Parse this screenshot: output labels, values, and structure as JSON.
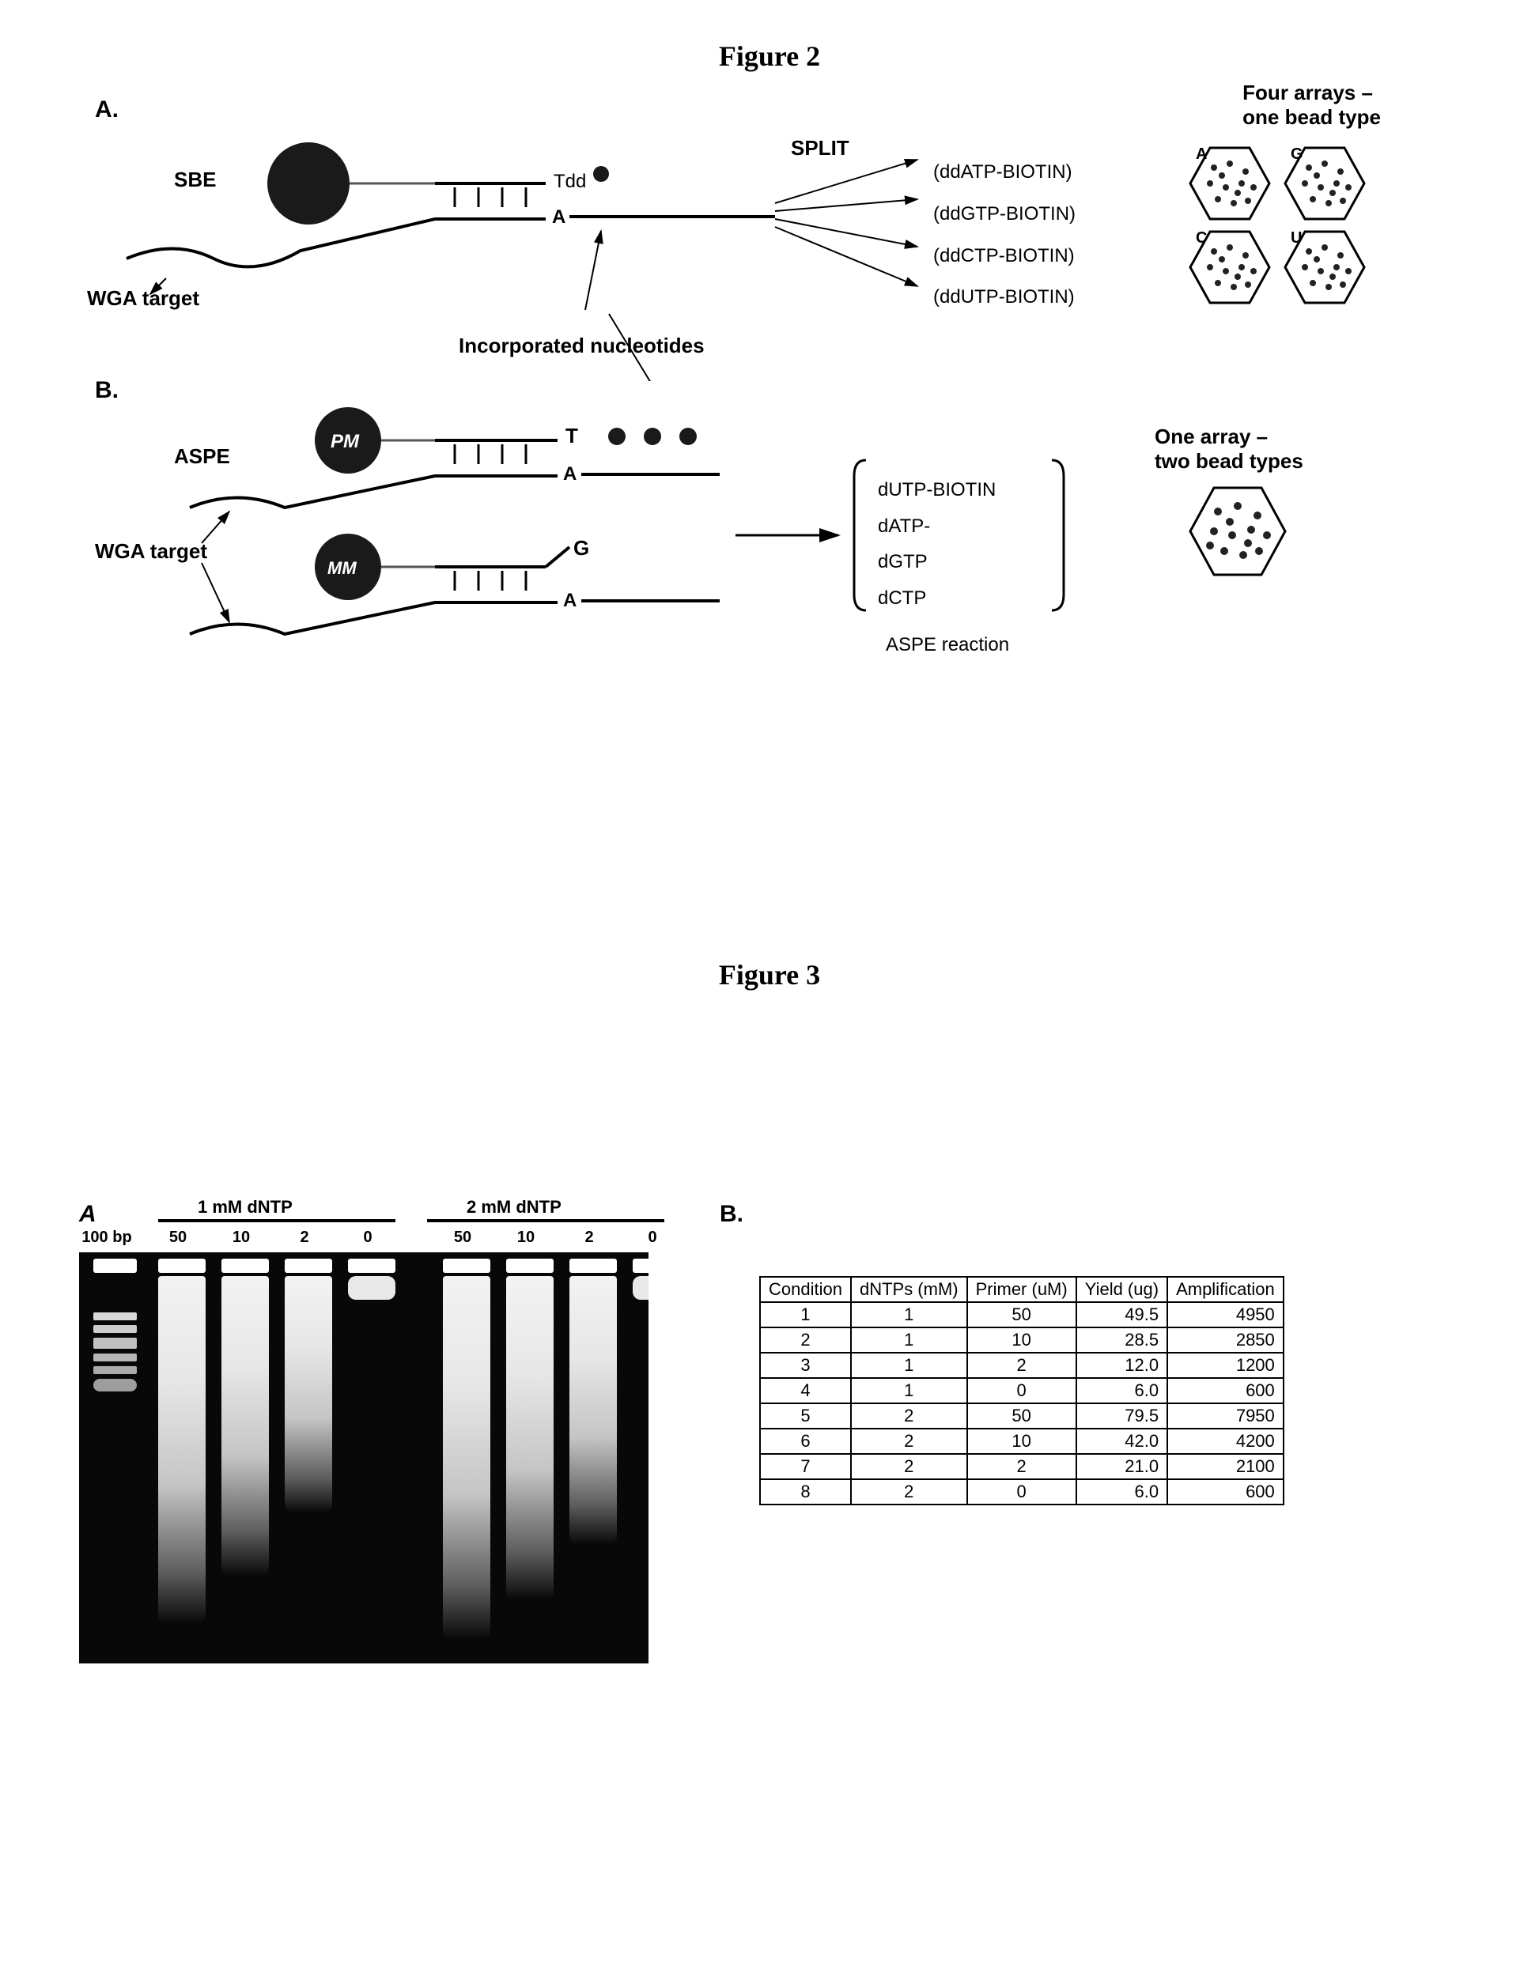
{
  "figure2": {
    "title": "Figure 2",
    "topRightLabel": "Four arrays –\none bead type",
    "panelALabel": "A.",
    "panelBLabel": "B.",
    "sbeLabel": "SBE",
    "aspeLabel": "ASPE",
    "wgaTargetLabel": "WGA target",
    "splitLabel": "SPLIT",
    "splitItems": [
      "(ddATP-BIOTIN)",
      "(ddGTP-BIOTIN)",
      "(ddCTP-BIOTIN)",
      "(ddUTP-BIOTIN)"
    ],
    "incorporatedLabel": "Incorporated nucleotides",
    "aspeReagents": [
      "dUTP-BIOTIN",
      "dATP-",
      "dGTP",
      "dCTP"
    ],
    "aspeReactionLabel": "ASPE reaction",
    "oneArrayLabel": "One array –\ntwo bead types",
    "pmLabel": "PM",
    "mmLabel": "MM",
    "baseT": "Tdd",
    "baseT2": "T",
    "baseA": "A",
    "baseG": "G",
    "hexLabels": [
      "A",
      "G",
      "C",
      "U"
    ],
    "colors": {
      "beadFill": "#1a1a1a",
      "lineColor": "#000000",
      "hexStroke": "#000000",
      "dotFill": "#222222"
    }
  },
  "figure3": {
    "title": "Figure 3",
    "panelALabel": "A",
    "panelBLabel": "B.",
    "group1Label": "1 mM dNTP",
    "group2Label": "2 mM dNTP",
    "ladderLabel": "100 bp",
    "laneLabels": [
      "50",
      "10",
      "2",
      "0",
      "50",
      "10",
      "2",
      "0"
    ],
    "table": {
      "columns": [
        "Condition",
        "dNTPs (mM)",
        "Primer (uM)",
        "Yield (ug)",
        "Amplification"
      ],
      "rows": [
        [
          "1",
          "1",
          "50",
          "49.5",
          "4950"
        ],
        [
          "2",
          "1",
          "10",
          "28.5",
          "2850"
        ],
        [
          "3",
          "1",
          "2",
          "12.0",
          "1200"
        ],
        [
          "4",
          "1",
          "0",
          "6.0",
          "600"
        ],
        [
          "5",
          "2",
          "50",
          "79.5",
          "7950"
        ],
        [
          "6",
          "2",
          "10",
          "42.0",
          "4200"
        ],
        [
          "7",
          "2",
          "2",
          "21.0",
          "2100"
        ],
        [
          "8",
          "2",
          "0",
          "6.0",
          "600"
        ]
      ]
    },
    "gel": {
      "lanePositions": [
        20,
        110,
        190,
        270,
        350,
        470,
        550,
        630,
        710
      ],
      "laneWidths": [
        60,
        60,
        60,
        60,
        60,
        60,
        60,
        60,
        60
      ],
      "smearHeights": [
        0,
        440,
        380,
        300,
        60,
        460,
        410,
        340,
        60
      ],
      "background": "#080808"
    }
  }
}
